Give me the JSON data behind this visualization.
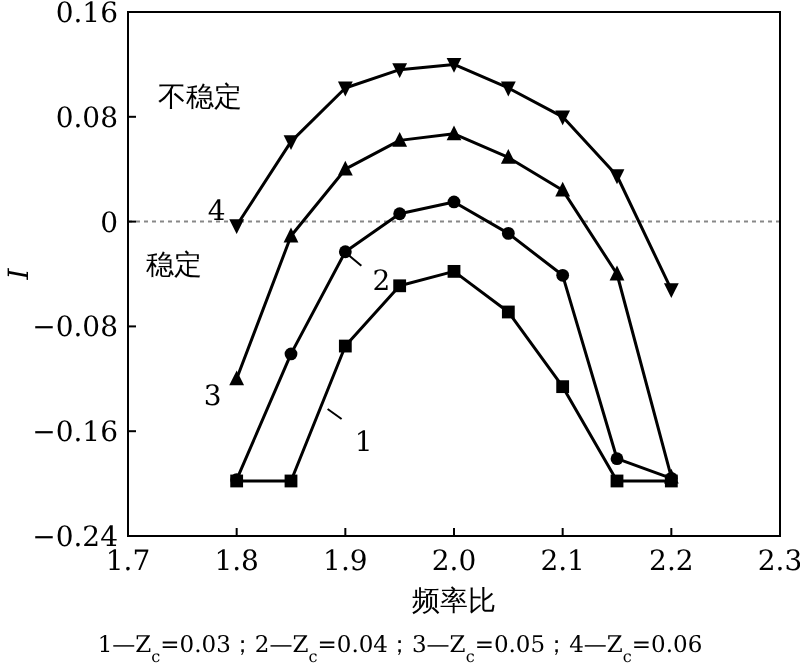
{
  "chart_data": {
    "type": "line",
    "xlabel": "频率比",
    "ylabel": "*I*",
    "x": [
      1.8,
      1.85,
      1.9,
      1.95,
      2.0,
      2.05,
      2.1,
      2.15,
      2.2
    ],
    "xlim": [
      1.7,
      2.3
    ],
    "xticks": [
      {
        "value": 1.7,
        "label": "1.7"
      },
      {
        "value": 1.8,
        "label": "1.8"
      },
      {
        "value": 1.9,
        "label": "1.9"
      },
      {
        "value": 2.0,
        "label": "2.0"
      },
      {
        "value": 2.1,
        "label": "2.1"
      },
      {
        "value": 2.2,
        "label": "2.2"
      },
      {
        "value": 2.3,
        "label": "2.3"
      }
    ],
    "ylim": [
      -0.24,
      0.16
    ],
    "yticks": [
      {
        "value": -0.24,
        "label": "−0.24"
      },
      {
        "value": -0.16,
        "label": "−0.16"
      },
      {
        "value": -0.08,
        "label": "−0.08"
      },
      0,
      0.08,
      0.16
    ],
    "series": [
      {
        "color": "#000000",
        "marker": "square",
        "values": [
          -0.198,
          -0.198,
          -0.095,
          -0.049,
          -0.038,
          -0.069,
          -0.126,
          -0.198,
          -0.198
        ]
      },
      {
        "color": "#000000",
        "marker": "circle",
        "values": [
          -0.197,
          -0.101,
          -0.023,
          0.006,
          0.015,
          -0.009,
          -0.041,
          -0.181,
          -0.196
        ]
      },
      {
        "color": "#000000",
        "marker": "triangle",
        "values": [
          -0.12,
          -0.011,
          0.04,
          0.062,
          0.067,
          0.049,
          0.024,
          -0.04,
          -0.195
        ]
      },
      {
        "color": "#000000",
        "marker": "triangle-down",
        "values": [
          -0.003,
          0.061,
          0.102,
          0.116,
          0.12,
          0.102,
          0.08,
          0.035,
          -0.052
        ]
      }
    ],
    "ref_lines": [
      {
        "axis": "y",
        "value": 0,
        "color": "#888888",
        "line_style": "dotted"
      }
    ],
    "line_style": "solid",
    "grid": false,
    "annotations": [
      {
        "text": "1",
        "x": 1.88,
        "y": -0.14
      },
      {
        "text": "2",
        "x": 1.9,
        "y": -0.023
      },
      {
        "text": "3",
        "x": 1.8,
        "y": -0.12
      },
      {
        "text": "4",
        "x": 1.8,
        "y": -0.003
      },
      "不稳定",
      "稳定",
      "1—Z$_{c}$=0.03；2—Z$_{c}$=0.04；3—Z$_{c}$=0.05；4—Z$_{c}$=0.06"
    ]
  }
}
